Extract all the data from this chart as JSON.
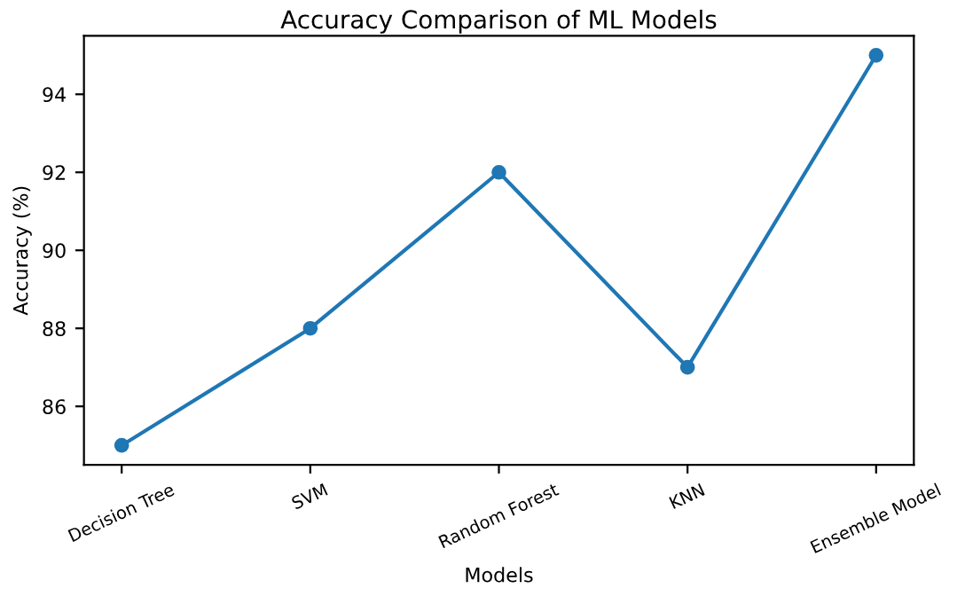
{
  "chart_data": {
    "type": "line",
    "title": "Accuracy Comparison of ML Models",
    "xlabel": "Models",
    "ylabel": "Accuracy (%)",
    "categories": [
      "Decision Tree",
      "SVM",
      "Random Forest",
      "KNN",
      "Ensemble Model"
    ],
    "series": [
      {
        "color": "#1f77b4",
        "values": [
          85,
          88,
          92,
          87,
          95
        ]
      }
    ],
    "ylim": [
      84.5,
      95.5
    ],
    "yticks": [
      86,
      88,
      90,
      92,
      94
    ],
    "marker": "circle",
    "line_style": "solid",
    "grid": false,
    "legend": false
  }
}
